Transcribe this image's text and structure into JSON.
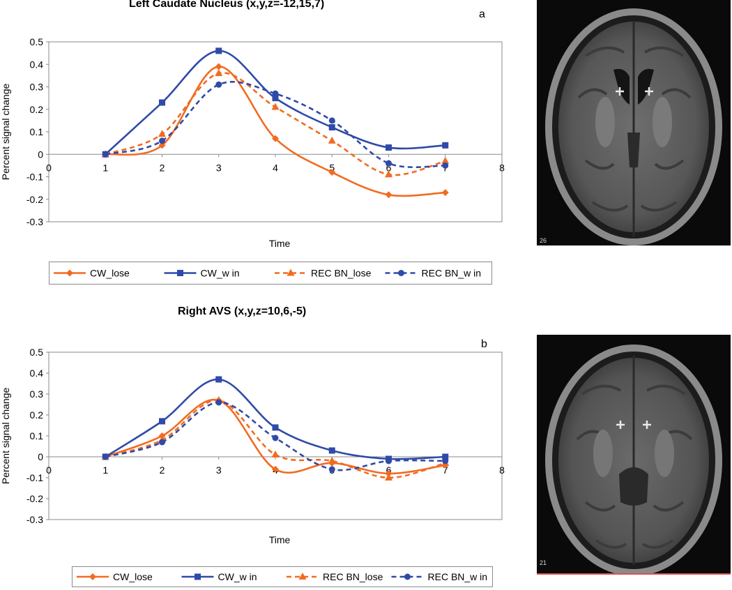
{
  "chart_data": [
    {
      "type": "line",
      "panel_label": "a",
      "title": "Left Caudate Nucleus (x,y,z=-12,15,7)",
      "xlabel": "Time",
      "ylabel": "Percent signal change",
      "xlim": [
        0,
        8
      ],
      "ylim": [
        -0.3,
        0.5
      ],
      "xticks": [
        0,
        1,
        2,
        3,
        4,
        5,
        6,
        7,
        8
      ],
      "yticks": [
        -0.3,
        -0.2,
        -0.1,
        0,
        0.1,
        0.2,
        0.3,
        0.4,
        0.5
      ],
      "x": [
        1,
        2,
        3,
        4,
        5,
        6,
        7
      ],
      "legend_position": "bottom",
      "grid": false,
      "series": [
        {
          "name": "CW_lose",
          "color": "#f26b21",
          "dashed": false,
          "marker": "diamond",
          "values": [
            0.0,
            0.04,
            0.39,
            0.07,
            -0.08,
            -0.18,
            -0.17
          ]
        },
        {
          "name": "CW_w in",
          "color": "#2f4aa8",
          "dashed": false,
          "marker": "square",
          "values": [
            0.0,
            0.23,
            0.46,
            0.25,
            0.12,
            0.03,
            0.04
          ]
        },
        {
          "name": "REC BN_lose",
          "color": "#f26b21",
          "dashed": true,
          "marker": "triangle",
          "values": [
            0.0,
            0.09,
            0.36,
            0.21,
            0.06,
            -0.09,
            -0.03
          ]
        },
        {
          "name": "REC BN_w in",
          "color": "#2f4aa8",
          "dashed": true,
          "marker": "circle",
          "values": [
            0.0,
            0.06,
            0.31,
            0.27,
            0.15,
            -0.04,
            -0.05
          ]
        }
      ]
    },
    {
      "type": "line",
      "panel_label": "b",
      "title": "Right AVS (x,y,z=10,6,-5)",
      "xlabel": "Time",
      "ylabel": "Percent signal change",
      "xlim": [
        0,
        8
      ],
      "ylim": [
        -0.3,
        0.5
      ],
      "xticks": [
        0,
        1,
        2,
        3,
        4,
        5,
        6,
        7,
        8
      ],
      "yticks": [
        -0.3,
        -0.2,
        -0.1,
        0,
        0.1,
        0.2,
        0.3,
        0.4,
        0.5
      ],
      "x": [
        1,
        2,
        3,
        4,
        5,
        6,
        7
      ],
      "legend_position": "bottom",
      "grid": false,
      "series": [
        {
          "name": "CW_lose",
          "color": "#f26b21",
          "dashed": false,
          "marker": "diamond",
          "values": [
            0.0,
            0.1,
            0.27,
            -0.06,
            -0.03,
            -0.08,
            -0.04
          ]
        },
        {
          "name": "CW_w in",
          "color": "#2f4aa8",
          "dashed": false,
          "marker": "square",
          "values": [
            0.0,
            0.17,
            0.37,
            0.14,
            0.03,
            -0.01,
            0.0
          ]
        },
        {
          "name": "REC BN_lose",
          "color": "#f26b21",
          "dashed": true,
          "marker": "triangle",
          "values": [
            0.0,
            0.08,
            0.27,
            0.01,
            -0.02,
            -0.1,
            -0.03
          ]
        },
        {
          "name": "REC BN_w in",
          "color": "#2f4aa8",
          "dashed": true,
          "marker": "circle",
          "values": [
            0.0,
            0.07,
            0.26,
            0.09,
            -0.06,
            -0.02,
            -0.02
          ]
        }
      ]
    }
  ],
  "brain_images": [
    {
      "slice_number": "26",
      "background": "#0a0a0a",
      "marker_color": "#e8e8e8"
    },
    {
      "slice_number": "21",
      "background": "#0a0a0a",
      "marker_color": "#e8e8e8"
    }
  ]
}
